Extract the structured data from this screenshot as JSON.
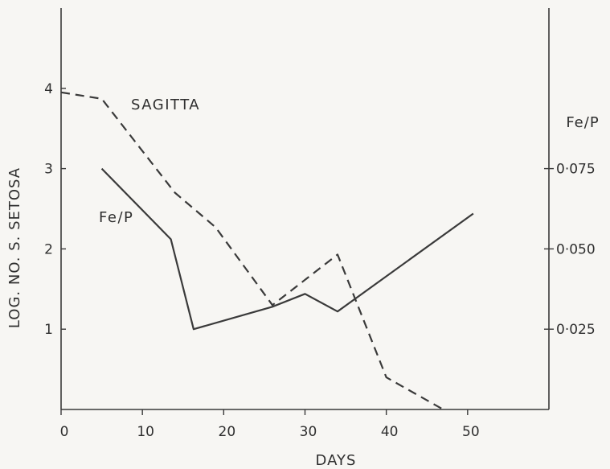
{
  "chart_data": {
    "type": "line",
    "xlabel": "DAYS",
    "ylabel": "LOG. NO. S. SETOSA",
    "y2label": "Fe/P",
    "xlim": [
      0,
      60
    ],
    "ylim": [
      0,
      5
    ],
    "y2lim": [
      0,
      0.125
    ],
    "x_ticks": [
      0,
      10,
      20,
      30,
      40,
      50
    ],
    "y_ticks": [
      1,
      2,
      3,
      4
    ],
    "y2_ticks": [
      0.025,
      0.05,
      0.075
    ],
    "x_tick_labels": [
      "0",
      "10",
      "20",
      "30",
      "40",
      "50"
    ],
    "y_tick_labels": [
      "1",
      "2",
      "3",
      "4"
    ],
    "y2_tick_labels": [
      "0·025",
      "0·050",
      "0·075"
    ],
    "series": [
      {
        "name": "SAGITTA",
        "axis": "left",
        "style": "dashed",
        "x": [
          0,
          5,
          14,
          19,
          26,
          34,
          40,
          47
        ],
        "y": [
          3.95,
          3.87,
          2.7,
          2.27,
          1.3,
          1.93,
          0.4,
          0
        ]
      },
      {
        "name": "Fe/P",
        "axis": "right",
        "style": "solid",
        "x": [
          5,
          13.5,
          16.3,
          26,
          30,
          34,
          50.7
        ],
        "y": [
          0.075,
          0.053,
          0.025,
          0.032,
          0.036,
          0.0305,
          0.061
        ]
      }
    ],
    "grid": false
  }
}
